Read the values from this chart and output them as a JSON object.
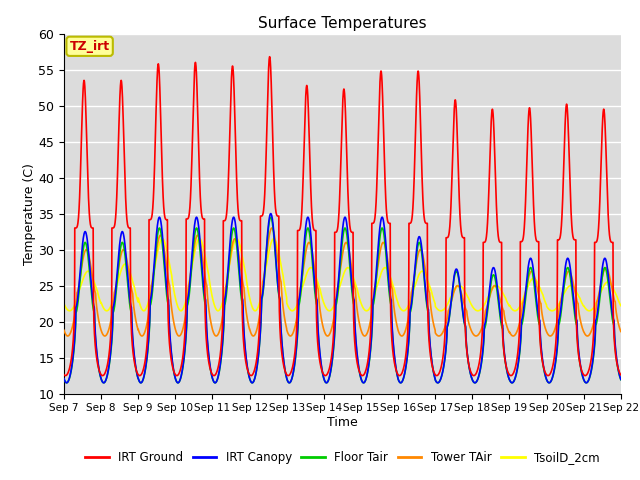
{
  "title": "Surface Temperatures",
  "xlabel": "Time",
  "ylabel": "Temperature (C)",
  "ylim": [
    10,
    60
  ],
  "background_color": "#dcdcdc",
  "annotation_text": "TZ_irt",
  "annotation_facecolor": "#ffff99",
  "annotation_edgecolor": "#bbbb00",
  "annotation_textcolor": "#cc0000",
  "num_days": 15,
  "irt_peaks": [
    53.5,
    53.5,
    55.8,
    56.0,
    55.5,
    56.8,
    52.8,
    52.3,
    54.8,
    54.8,
    50.8,
    49.5,
    49.7,
    50.2,
    49.5
  ],
  "canopy_peaks": [
    32.5,
    32.5,
    34.5,
    34.5,
    34.5,
    35.0,
    34.5,
    34.5,
    34.5,
    31.8,
    27.3,
    27.5,
    28.8,
    28.8,
    28.8
  ],
  "floor_peaks": [
    31.0,
    31.0,
    33.0,
    33.0,
    33.0,
    34.5,
    33.0,
    33.0,
    33.0,
    31.0,
    27.0,
    26.5,
    27.5,
    27.5,
    27.5
  ],
  "tower_peaks": [
    30.0,
    30.0,
    32.0,
    32.0,
    31.5,
    33.0,
    31.0,
    31.0,
    31.0,
    30.0,
    25.0,
    25.0,
    27.0,
    27.0,
    27.5
  ],
  "tsoil_peaks": [
    27.0,
    28.0,
    31.5,
    31.5,
    31.5,
    31.5,
    27.5,
    27.5,
    27.5,
    27.0,
    25.0,
    25.0,
    26.0,
    25.0,
    25.5
  ],
  "irt_night_min": 12.5,
  "canopy_night_min": 11.5,
  "floor_night_min": 11.5,
  "tower_night_min": 18.0,
  "tsoil_night_min": 21.5,
  "series_colors": {
    "IRT Ground": "#ff0000",
    "IRT Canopy": "#0000ff",
    "Floor Tair": "#00cc00",
    "Tower TAir": "#ff8800",
    "TsoilD_2cm": "#ffff00"
  },
  "lw": 1.2,
  "grid_color": "#ffffff",
  "tick_labels": [
    "Sep 7",
    "Sep 8",
    "Sep 9",
    "Sep 10",
    "Sep 11",
    "Sep 12",
    "Sep 13",
    "Sep 14",
    "Sep 15",
    "Sep 16",
    "Sep 17",
    "Sep 18",
    "Sep 19",
    "Sep 20",
    "Sep 21",
    "Sep 22"
  ]
}
